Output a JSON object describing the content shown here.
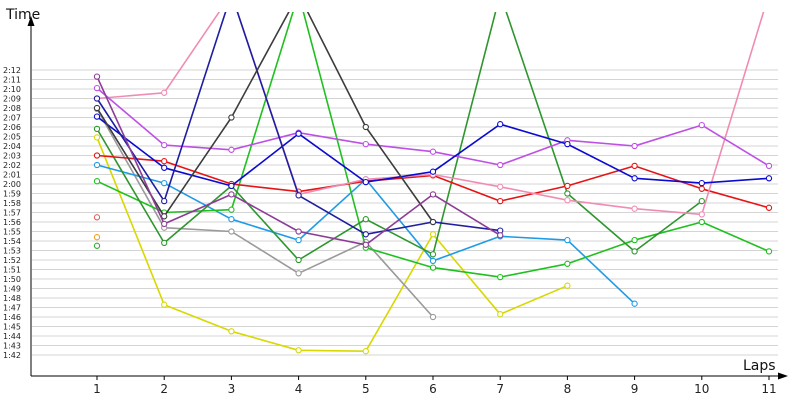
{
  "chart_data": {
    "type": "line",
    "xlabel": "Laps",
    "ylabel": "Time",
    "x": [
      1,
      2,
      3,
      4,
      5,
      6,
      7,
      8,
      9,
      10,
      11
    ],
    "ylim_seconds": [
      101,
      133
    ],
    "grid": "horizontal",
    "yticks": [
      "1:42",
      "1:43",
      "1:44",
      "1:45",
      "1:46",
      "1:47",
      "1:48",
      "1:49",
      "1:50",
      "1:51",
      "1:52",
      "1:53",
      "1:54",
      "1:55",
      "1:56",
      "1:57",
      "1:58",
      "1:59",
      "2:00",
      "2:01",
      "2:02",
      "2:03",
      "2:04",
      "2:05",
      "2:06",
      "2:07",
      "2:08",
      "2:09",
      "2:10",
      "2:11",
      "2:12"
    ],
    "series": [
      {
        "color": "#d8d800",
        "values": [
          "2:04.9",
          "1:47.3",
          "1:44.5",
          "1:42.5",
          "1:42.4",
          "1:54.7",
          "1:46.3",
          "1:49.3",
          null,
          null,
          null
        ]
      },
      {
        "color": "#9a9a9a",
        "values": [
          "2:07.9",
          "1:55.4",
          "1:55.0",
          "1:50.6",
          "1:53.9",
          "1:46.0",
          null,
          null,
          null,
          null,
          null
        ]
      },
      {
        "color": "#1e9be6",
        "values": [
          "2:02.0",
          "2:00.1",
          "1:56.3",
          "1:54.1",
          "2:00.5",
          "1:51.9",
          "1:54.5",
          "1:54.1",
          "1:47.4",
          null,
          null
        ]
      },
      {
        "color": "#20c020",
        "values": [
          "2:00.3",
          "1:57.0",
          "1:57.3",
          "2:20.0",
          "1:53.3",
          "1:51.2",
          "1:50.2",
          "1:51.6",
          "1:54.1",
          "1:56.0",
          "1:52.9"
        ]
      },
      {
        "color": "#2e962e",
        "values": [
          "2:05.8",
          "1:53.8",
          "1:59.8",
          "1:52.0",
          "1:56.3",
          "1:52.6",
          "2:20.0",
          "1:59.0",
          "1:52.9",
          "1:58.2",
          null
        ]
      },
      {
        "color": "#e61414",
        "values": [
          "2:03.0",
          "2:02.4",
          "2:00.0",
          "1:59.2",
          "2:00.3",
          "2:00.9",
          "1:58.2",
          "1:59.8",
          "2:01.9",
          "1:59.5",
          "1:57.5"
        ]
      },
      {
        "color": "#f08cb4",
        "values": [
          "2:09.0",
          "2:09.6",
          "2:20.0",
          "1:58.9",
          "2:00.5",
          "2:01.0",
          "1:59.7",
          "1:58.3",
          "1:57.4",
          "1:56.8",
          "2:20.0"
        ]
      },
      {
        "color": "#be50e6",
        "values": [
          "2:10.1",
          "2:04.1",
          "2:03.6",
          "2:05.4",
          "2:04.2",
          "2:03.4",
          "2:02.0",
          "2:04.6",
          "2:04.0",
          "2:06.2",
          "2:01.9"
        ]
      },
      {
        "color": "#0a0ad2",
        "values": [
          "2:07.1",
          "2:01.7",
          "1:59.8",
          "2:05.3",
          "2:00.2",
          "2:01.3",
          "2:06.3",
          "2:04.2",
          "2:00.6",
          "2:00.1",
          "2:00.6"
        ]
      },
      {
        "color": "#1e1ea0",
        "values": [
          "2:09.0",
          "1:58.2",
          "2:20.0",
          "1:58.8",
          "1:54.7",
          "1:56.0",
          "1:55.1",
          null,
          null,
          null,
          null
        ]
      },
      {
        "color": "#3c3c3c",
        "values": [
          "2:08.0",
          "1:56.6",
          "2:07.0",
          "2:20.0",
          "2:06.0",
          "1:56.0",
          null,
          null,
          null,
          null,
          null
        ]
      },
      {
        "color": "#8c3c96",
        "values": [
          "2:11.3",
          "1:55.8",
          "1:58.9",
          "1:55.0",
          "1:53.6",
          "1:58.9",
          "1:54.6",
          null,
          null,
          null,
          null
        ]
      },
      {
        "color": "#e06464",
        "values": [
          "1:56.5",
          null,
          null,
          null,
          null,
          null,
          null,
          null,
          null,
          null,
          null
        ]
      },
      {
        "color": "#f0a020",
        "values": [
          "1:54.4",
          null,
          null,
          null,
          null,
          null,
          null,
          null,
          null,
          null,
          null
        ]
      },
      {
        "color": "#30b030",
        "values": [
          "1:53.5",
          null,
          null,
          null,
          null,
          null,
          null,
          null,
          null,
          null,
          null
        ]
      }
    ]
  }
}
